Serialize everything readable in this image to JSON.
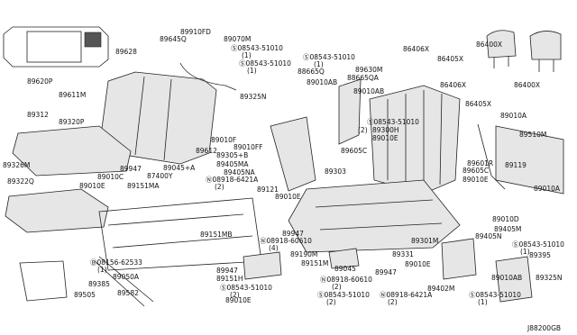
{
  "labels": [
    "89645Q",
    "89910FD",
    "89070M",
    "89628",
    "Ⓢ08543-51010",
    "(1)",
    "Ⓢ08543-51010",
    "(1)",
    "Ⓢ08543-51010",
    "(1)",
    "88665Q",
    "89630M",
    "88665QA",
    "89010AB",
    "89010AB",
    "86406X",
    "86400X",
    "86405X",
    "86406X",
    "86400X",
    "86405X",
    "89010A",
    "89620P",
    "89611M",
    "89325N",
    "89312",
    "89320P",
    "89010F",
    "89010FF",
    "89305+B",
    "89405MA",
    "89405NA",
    "Ⓝ08918-6421A",
    "(2)",
    "Ⓢ08543-51010",
    "(2)",
    "89300H",
    "89010E",
    "89605C",
    "89303",
    "89510M",
    "89119",
    "89010A",
    "89612",
    "89326M",
    "89947",
    "89045+A",
    "89010C",
    "89010E",
    "87400Y",
    "89151MA",
    "89322Q",
    "89121",
    "89010E",
    "89601R",
    "89605C",
    "89010E",
    "89010D",
    "89405M",
    "89405N",
    "Ⓢ08543-51010",
    "(1)",
    "89395",
    "89325N",
    "89151MB",
    "89947",
    "Ⓝ08918-60610",
    "(4)",
    "89301M",
    "89331",
    "89010E",
    "89190M",
    "89151M",
    "89045",
    "89947",
    "89010AB",
    "Ⓝ08918-60610",
    "(2)",
    "Ⓢ08543-51010",
    "(2)",
    "Ⓝ08918-6421A",
    "(2)",
    "Ⓢ08543-51010",
    "(1)",
    "89402M",
    "Ⓑ08156-62533",
    "(1)",
    "89050A",
    "89947",
    "89151H",
    "Ⓢ08543-51010",
    "(2)",
    "89010E",
    "89385",
    "89582",
    "89505",
    "J88200GB"
  ]
}
